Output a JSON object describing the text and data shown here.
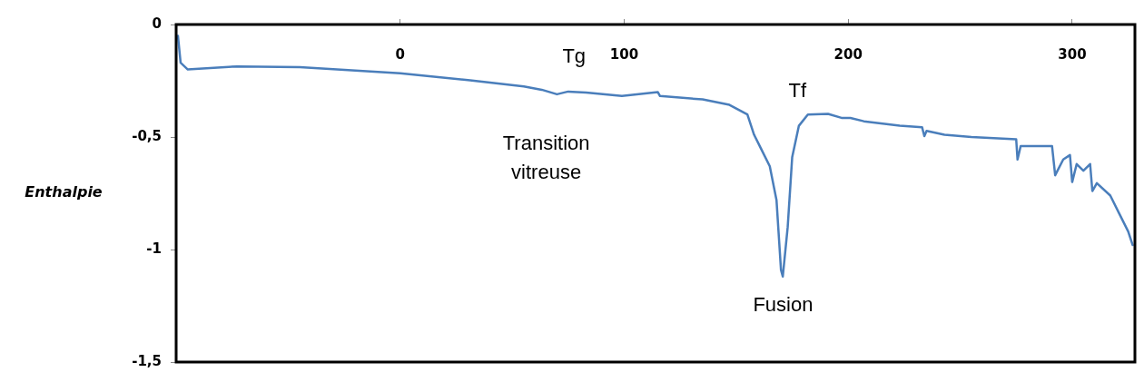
{
  "chart_data": {
    "type": "line",
    "ylabel": "Enthalpie",
    "xlim": [
      -100,
      328
    ],
    "xticks": [
      0,
      100,
      200,
      300
    ],
    "ylim": [
      -1.5,
      0
    ],
    "yticks": [
      {
        "value": 0,
        "label": "0"
      },
      {
        "value": -0.5,
        "label": "-0,5"
      },
      {
        "value": -1,
        "label": "-1"
      },
      {
        "value": -1.5,
        "label": "-1,5"
      }
    ],
    "grid": false,
    "legend": false,
    "marker": "none",
    "line_style": "solid",
    "series": [
      {
        "color": "#4a7ebb",
        "x": [
          -99.2,
          -98,
          -94.8,
          -72.8,
          -44.8,
          0,
          31.2,
          55.2,
          63.2,
          70,
          75,
          83,
          99,
          115,
          116,
          135,
          147,
          155,
          158,
          161,
          165,
          168,
          170,
          170.8,
          173,
          175,
          178,
          182,
          191,
          197,
          201,
          207,
          223,
          233,
          234,
          235,
          243,
          255,
          275,
          275.6,
          277,
          291,
          292.4,
          296,
          299,
          300,
          302,
          305,
          308,
          309,
          311,
          317,
          321,
          325,
          327
        ],
        "values": [
          -0.05,
          -0.17,
          -0.2,
          -0.186,
          -0.19,
          -0.217,
          -0.248,
          -0.275,
          -0.29,
          -0.31,
          -0.298,
          -0.302,
          -0.318,
          -0.3,
          -0.318,
          -0.333,
          -0.357,
          -0.4,
          -0.49,
          -0.55,
          -0.63,
          -0.78,
          -1.09,
          -1.12,
          -0.9,
          -0.59,
          -0.45,
          -0.4,
          -0.397,
          -0.415,
          -0.415,
          -0.43,
          -0.45,
          -0.457,
          -0.496,
          -0.473,
          -0.49,
          -0.5,
          -0.51,
          -0.6,
          -0.54,
          -0.54,
          -0.67,
          -0.6,
          -0.58,
          -0.7,
          -0.62,
          -0.65,
          -0.62,
          -0.74,
          -0.705,
          -0.76,
          -0.84,
          -0.92,
          -0.98
        ]
      }
    ],
    "annotations": [
      "Tg",
      "Transition vitreuse",
      "Tf",
      "Fusion"
    ]
  }
}
